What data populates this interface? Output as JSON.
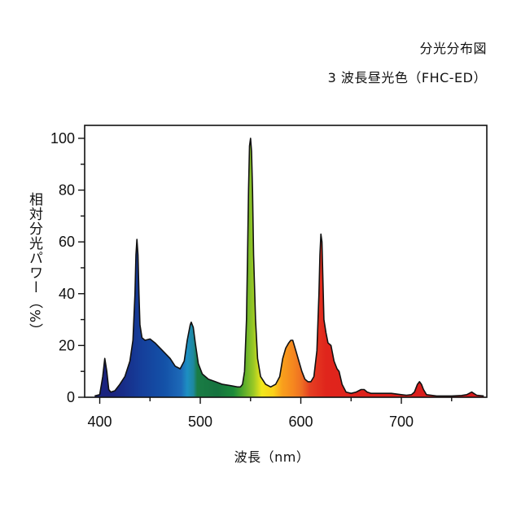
{
  "chart_data": {
    "type": "area",
    "title": "分光分布図",
    "subtitle": "3 波長昼光色（FHC-ED）",
    "xlabel": "波長（nm）",
    "ylabel": "相対分光パワー（%）",
    "xlim": [
      385,
      785
    ],
    "ylim": [
      0,
      105
    ],
    "x_ticks": [
      400,
      500,
      600,
      700
    ],
    "y_ticks": [
      0,
      20,
      40,
      60,
      80,
      100
    ],
    "grid": false,
    "legend": "none",
    "fill": "visible-spectrum gradient",
    "series": [
      {
        "points": [
          [
            395,
            0.5
          ],
          [
            400,
            1
          ],
          [
            403,
            8
          ],
          [
            405,
            15
          ],
          [
            407,
            10
          ],
          [
            409,
            3
          ],
          [
            411,
            2
          ],
          [
            415,
            2.5
          ],
          [
            420,
            5
          ],
          [
            425,
            8
          ],
          [
            430,
            14
          ],
          [
            433,
            22
          ],
          [
            435,
            40
          ],
          [
            436,
            55
          ],
          [
            437,
            61
          ],
          [
            438,
            55
          ],
          [
            439,
            40
          ],
          [
            440,
            28
          ],
          [
            442,
            23
          ],
          [
            445,
            22
          ],
          [
            450,
            22.5
          ],
          [
            455,
            21
          ],
          [
            460,
            19
          ],
          [
            465,
            17
          ],
          [
            470,
            15
          ],
          [
            475,
            12
          ],
          [
            480,
            11
          ],
          [
            484,
            14
          ],
          [
            487,
            22
          ],
          [
            490,
            28
          ],
          [
            491,
            29
          ],
          [
            493,
            27
          ],
          [
            495,
            21
          ],
          [
            498,
            13
          ],
          [
            502,
            9
          ],
          [
            508,
            7
          ],
          [
            515,
            6
          ],
          [
            522,
            5
          ],
          [
            530,
            4.5
          ],
          [
            537,
            4
          ],
          [
            540,
            4
          ],
          [
            542,
            5
          ],
          [
            544,
            10
          ],
          [
            546,
            30
          ],
          [
            547,
            55
          ],
          [
            548,
            80
          ],
          [
            549,
            97
          ],
          [
            550,
            100
          ],
          [
            551,
            95
          ],
          [
            552,
            80
          ],
          [
            553,
            55
          ],
          [
            555,
            30
          ],
          [
            557,
            15
          ],
          [
            560,
            8
          ],
          [
            565,
            5
          ],
          [
            570,
            4
          ],
          [
            575,
            5
          ],
          [
            579,
            8
          ],
          [
            582,
            15
          ],
          [
            585,
            19
          ],
          [
            588,
            21
          ],
          [
            590,
            22
          ],
          [
            592,
            22
          ],
          [
            595,
            18
          ],
          [
            598,
            14
          ],
          [
            601,
            10
          ],
          [
            604,
            7
          ],
          [
            607,
            6
          ],
          [
            610,
            6
          ],
          [
            613,
            8
          ],
          [
            616,
            18
          ],
          [
            618,
            40
          ],
          [
            619,
            55
          ],
          [
            620,
            63
          ],
          [
            621,
            60
          ],
          [
            622,
            45
          ],
          [
            623,
            30
          ],
          [
            625,
            25
          ],
          [
            627,
            21
          ],
          [
            630,
            20
          ],
          [
            633,
            14
          ],
          [
            636,
            11
          ],
          [
            638,
            10
          ],
          [
            641,
            5
          ],
          [
            645,
            2
          ],
          [
            650,
            1.5
          ],
          [
            655,
            2
          ],
          [
            660,
            3
          ],
          [
            663,
            3
          ],
          [
            666,
            2
          ],
          [
            670,
            1.5
          ],
          [
            680,
            1.5
          ],
          [
            690,
            1.5
          ],
          [
            700,
            1
          ],
          [
            705,
            0.8
          ],
          [
            710,
            1
          ],
          [
            713,
            2
          ],
          [
            716,
            5
          ],
          [
            718,
            6
          ],
          [
            720,
            5
          ],
          [
            722,
            3
          ],
          [
            725,
            1
          ],
          [
            735,
            0.5
          ],
          [
            750,
            0.5
          ],
          [
            760,
            0.7
          ],
          [
            765,
            1
          ],
          [
            770,
            2
          ],
          [
            772,
            1.5
          ],
          [
            775,
            0.8
          ],
          [
            782,
            0.5
          ]
        ]
      }
    ]
  }
}
